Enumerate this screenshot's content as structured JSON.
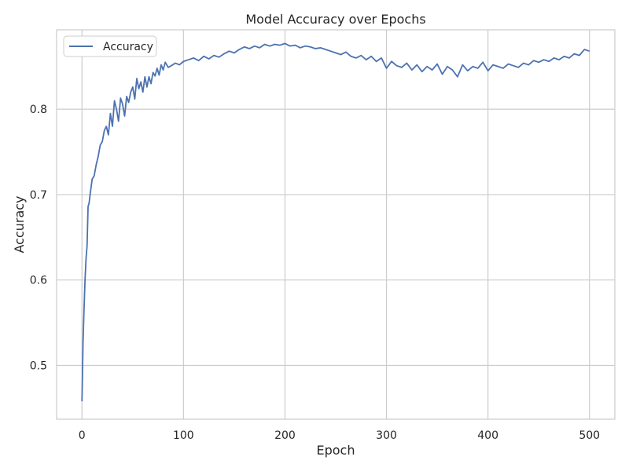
{
  "chart_data": {
    "type": "line",
    "title": "Model Accuracy over Epochs",
    "xlabel": "Epoch",
    "ylabel": "Accuracy",
    "xlim": [
      -25,
      525
    ],
    "ylim": [
      0.437,
      0.893
    ],
    "xticks": [
      0,
      100,
      200,
      300,
      400,
      500
    ],
    "yticks": [
      0.5,
      0.6,
      0.7,
      0.8
    ],
    "x_tick_labels": [
      "0",
      "100",
      "200",
      "300",
      "400",
      "500"
    ],
    "y_tick_labels": [
      "0.5",
      "0.6",
      "0.7",
      "0.8"
    ],
    "grid": true,
    "legend": {
      "position": "top-left",
      "entries": [
        "Accuracy"
      ]
    },
    "colors": {
      "line": "#4c72b0",
      "grid": "#cccccc",
      "frame": "#cccccc",
      "text": "#262626"
    },
    "series": [
      {
        "name": "Accuracy",
        "points": [
          [
            0,
            0.458
          ],
          [
            1,
            0.525
          ],
          [
            2,
            0.565
          ],
          [
            3,
            0.6
          ],
          [
            4,
            0.625
          ],
          [
            5,
            0.64
          ],
          [
            6,
            0.686
          ],
          [
            7,
            0.69
          ],
          [
            8,
            0.7
          ],
          [
            10,
            0.718
          ],
          [
            12,
            0.722
          ],
          [
            14,
            0.735
          ],
          [
            16,
            0.745
          ],
          [
            18,
            0.758
          ],
          [
            20,
            0.762
          ],
          [
            22,
            0.775
          ],
          [
            24,
            0.78
          ],
          [
            26,
            0.77
          ],
          [
            28,
            0.795
          ],
          [
            30,
            0.78
          ],
          [
            32,
            0.81
          ],
          [
            34,
            0.8
          ],
          [
            36,
            0.786
          ],
          [
            38,
            0.813
          ],
          [
            40,
            0.806
          ],
          [
            42,
            0.792
          ],
          [
            44,
            0.815
          ],
          [
            46,
            0.808
          ],
          [
            48,
            0.82
          ],
          [
            50,
            0.826
          ],
          [
            52,
            0.812
          ],
          [
            54,
            0.836
          ],
          [
            56,
            0.824
          ],
          [
            58,
            0.832
          ],
          [
            60,
            0.82
          ],
          [
            62,
            0.838
          ],
          [
            64,
            0.826
          ],
          [
            66,
            0.838
          ],
          [
            68,
            0.83
          ],
          [
            70,
            0.843
          ],
          [
            72,
            0.839
          ],
          [
            74,
            0.848
          ],
          [
            76,
            0.84
          ],
          [
            78,
            0.852
          ],
          [
            80,
            0.846
          ],
          [
            82,
            0.855
          ],
          [
            85,
            0.849
          ],
          [
            88,
            0.851
          ],
          [
            92,
            0.854
          ],
          [
            96,
            0.852
          ],
          [
            100,
            0.856
          ],
          [
            105,
            0.858
          ],
          [
            110,
            0.86
          ],
          [
            115,
            0.857
          ],
          [
            120,
            0.862
          ],
          [
            125,
            0.859
          ],
          [
            130,
            0.863
          ],
          [
            135,
            0.861
          ],
          [
            140,
            0.865
          ],
          [
            145,
            0.868
          ],
          [
            150,
            0.866
          ],
          [
            155,
            0.87
          ],
          [
            160,
            0.873
          ],
          [
            165,
            0.871
          ],
          [
            170,
            0.874
          ],
          [
            175,
            0.872
          ],
          [
            180,
            0.876
          ],
          [
            185,
            0.874
          ],
          [
            190,
            0.876
          ],
          [
            195,
            0.875
          ],
          [
            200,
            0.877
          ],
          [
            205,
            0.874
          ],
          [
            210,
            0.875
          ],
          [
            215,
            0.872
          ],
          [
            220,
            0.874
          ],
          [
            225,
            0.873
          ],
          [
            230,
            0.871
          ],
          [
            235,
            0.872
          ],
          [
            240,
            0.87
          ],
          [
            245,
            0.868
          ],
          [
            250,
            0.866
          ],
          [
            255,
            0.864
          ],
          [
            260,
            0.867
          ],
          [
            265,
            0.862
          ],
          [
            270,
            0.86
          ],
          [
            275,
            0.863
          ],
          [
            280,
            0.858
          ],
          [
            285,
            0.862
          ],
          [
            290,
            0.856
          ],
          [
            295,
            0.86
          ],
          [
            300,
            0.848
          ],
          [
            305,
            0.856
          ],
          [
            310,
            0.851
          ],
          [
            315,
            0.849
          ],
          [
            320,
            0.854
          ],
          [
            325,
            0.846
          ],
          [
            330,
            0.852
          ],
          [
            335,
            0.844
          ],
          [
            340,
            0.85
          ],
          [
            345,
            0.846
          ],
          [
            350,
            0.853
          ],
          [
            355,
            0.841
          ],
          [
            360,
            0.85
          ],
          [
            365,
            0.846
          ],
          [
            370,
            0.838
          ],
          [
            375,
            0.852
          ],
          [
            380,
            0.845
          ],
          [
            385,
            0.85
          ],
          [
            390,
            0.848
          ],
          [
            395,
            0.855
          ],
          [
            400,
            0.845
          ],
          [
            405,
            0.852
          ],
          [
            410,
            0.85
          ],
          [
            415,
            0.848
          ],
          [
            420,
            0.853
          ],
          [
            425,
            0.851
          ],
          [
            430,
            0.849
          ],
          [
            435,
            0.854
          ],
          [
            440,
            0.852
          ],
          [
            445,
            0.857
          ],
          [
            450,
            0.855
          ],
          [
            455,
            0.858
          ],
          [
            460,
            0.856
          ],
          [
            465,
            0.86
          ],
          [
            470,
            0.858
          ],
          [
            475,
            0.862
          ],
          [
            480,
            0.86
          ],
          [
            485,
            0.865
          ],
          [
            490,
            0.863
          ],
          [
            495,
            0.87
          ],
          [
            500,
            0.868
          ]
        ]
      }
    ]
  }
}
